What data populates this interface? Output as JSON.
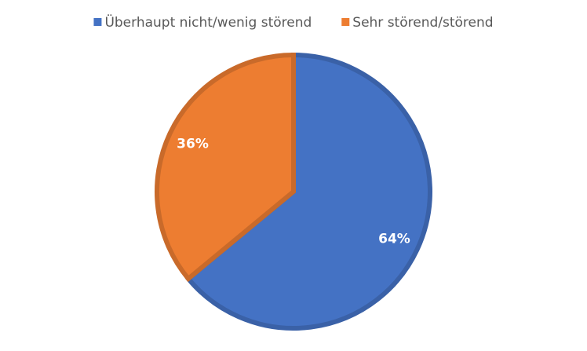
{
  "chart_data": {
    "type": "pie",
    "categories": [
      "Überhaupt nicht/wenig störend",
      "Sehr störend/störend"
    ],
    "values": [
      64,
      36
    ],
    "value_labels": [
      "64%",
      "36%"
    ],
    "colors": [
      "#4472c4",
      "#ed7d31"
    ],
    "legend": "top"
  }
}
